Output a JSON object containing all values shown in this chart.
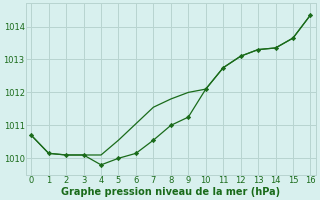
{
  "smooth_x": [
    0,
    1,
    2,
    3,
    4,
    5,
    6,
    7,
    8,
    9,
    10,
    11,
    12,
    13,
    14,
    15,
    16
  ],
  "smooth_y": [
    1010.7,
    1010.15,
    1010.1,
    1010.1,
    1010.1,
    1010.55,
    1011.05,
    1011.55,
    1011.8,
    1012.0,
    1012.1,
    1012.75,
    1013.1,
    1013.3,
    1013.35,
    1013.65,
    1014.35
  ],
  "marker_x": [
    0,
    1,
    2,
    3,
    4,
    5,
    6,
    7,
    8,
    9,
    10,
    11,
    12,
    13,
    14,
    15,
    16
  ],
  "marker_y": [
    1010.7,
    1010.15,
    1010.1,
    1010.1,
    1009.8,
    1010.0,
    1010.15,
    1010.55,
    1011.0,
    1011.25,
    1012.1,
    1012.75,
    1013.1,
    1013.3,
    1013.35,
    1013.65,
    1014.35
  ],
  "line_color": "#1a6b1a",
  "bg_color": "#d8f0ee",
  "grid_color": "#b8d4d0",
  "xlabel": "Graphe pression niveau de la mer (hPa)",
  "label_color": "#1a6b1a",
  "ylim": [
    1009.5,
    1014.7
  ],
  "xlim": [
    -0.3,
    16.3
  ],
  "yticks": [
    1010,
    1011,
    1012,
    1013,
    1014
  ],
  "xticks": [
    0,
    1,
    2,
    3,
    4,
    5,
    6,
    7,
    8,
    9,
    10,
    11,
    12,
    13,
    14,
    15,
    16
  ],
  "tick_labelsize": 6,
  "xlabel_fontsize": 7
}
